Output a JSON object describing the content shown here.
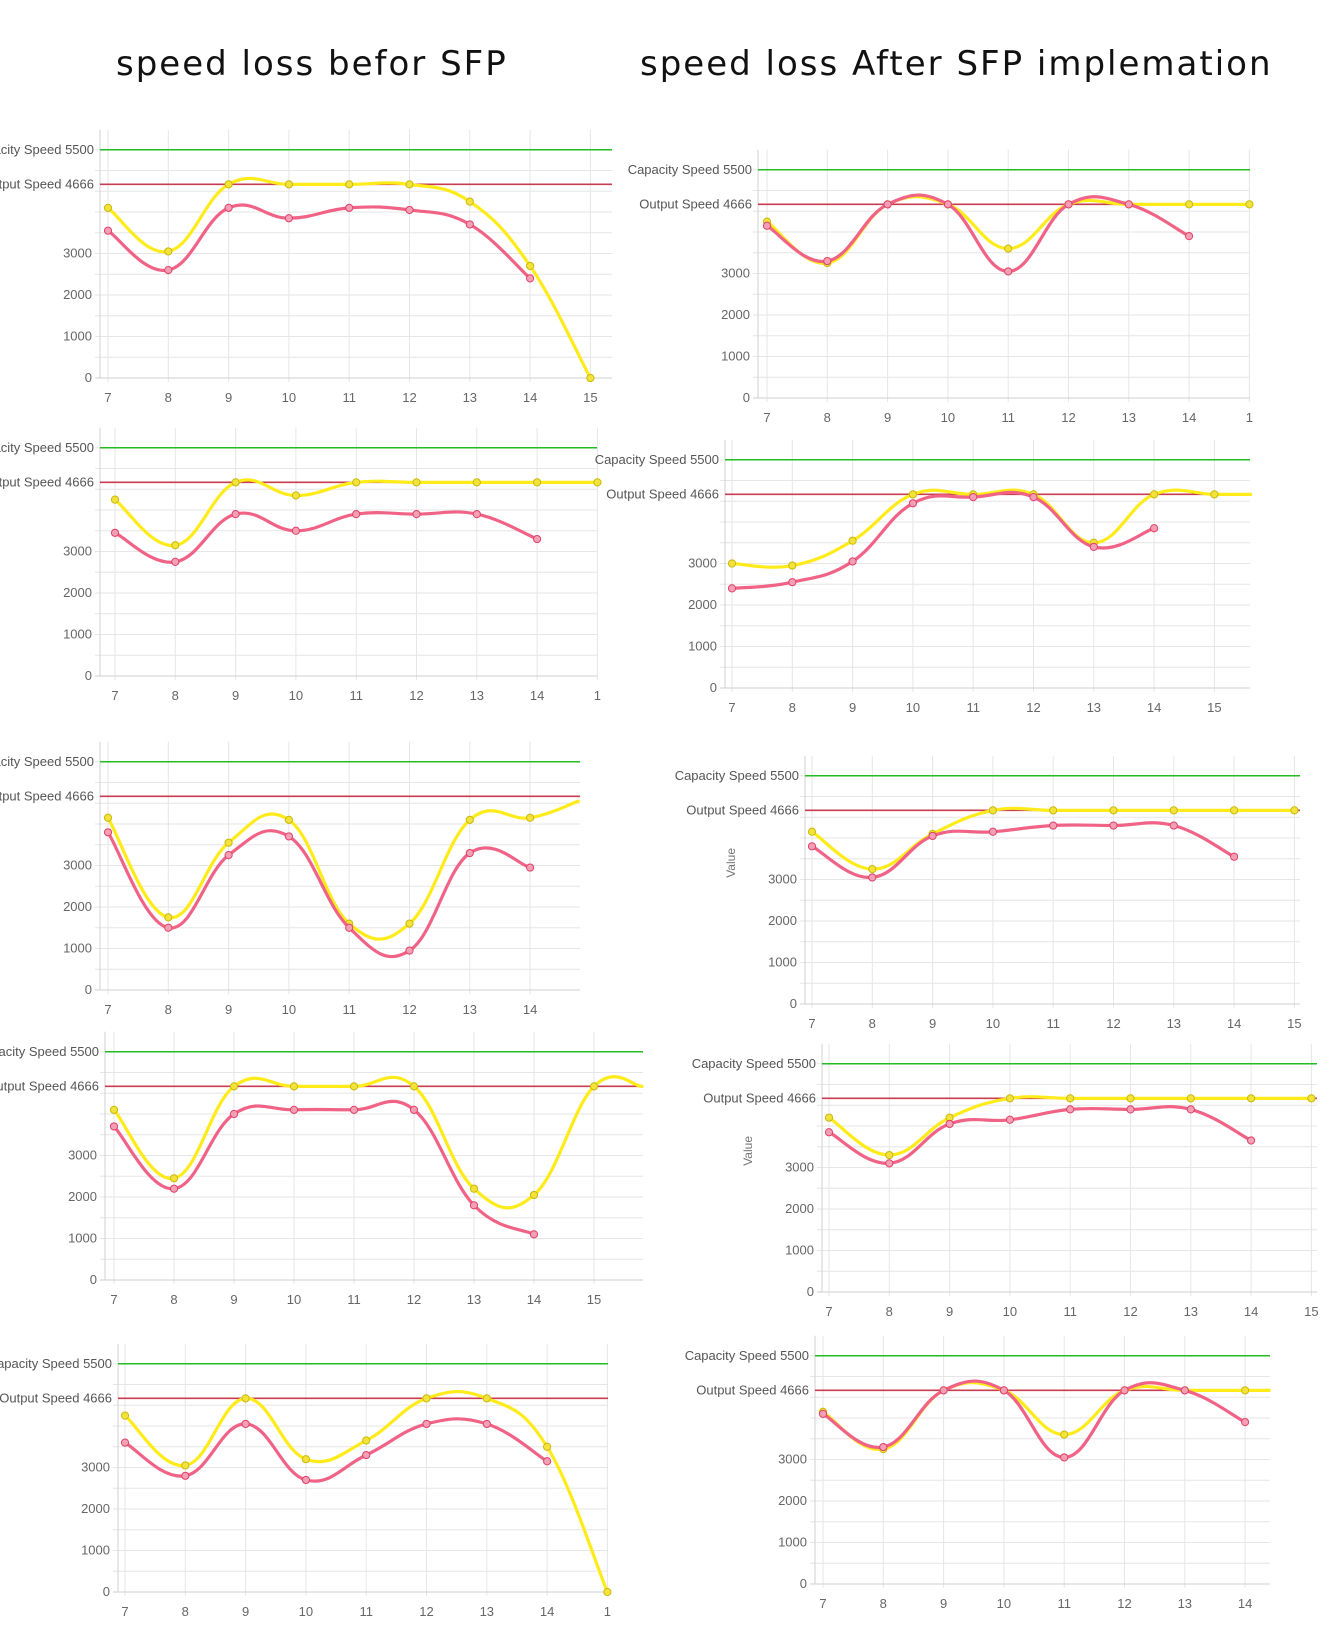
{
  "headings": {
    "left": "speed loss befor SFP",
    "right": "speed loss After SFP  implemation"
  },
  "colors": {
    "capacity_line": "#22bb22",
    "output_line": "#c83c50",
    "series_yellow": "#ffeb1a",
    "series_pink": "#f06386",
    "grid": "#e6e6e6"
  },
  "chart_data": [
    {
      "type": "line",
      "panel": "before-1",
      "x": [
        7,
        8,
        9,
        10,
        11,
        12,
        13,
        14,
        15
      ],
      "x_tick_labels": [
        "7",
        "8",
        "9",
        "10",
        "11",
        "12",
        "13",
        "14",
        "15"
      ],
      "y_ticks": [
        0,
        1000,
        2000,
        3000
      ],
      "reference_lines": [
        {
          "label": "Capacity Speed 5500",
          "value": 5500
        },
        {
          "label": "Output Speed 4666",
          "value": 4666
        }
      ],
      "ylim": [
        0,
        5500
      ],
      "series": [
        {
          "color": "yellow",
          "values": [
            4100,
            3050,
            4666,
            4666,
            4666,
            4666,
            4250,
            2700,
            0
          ]
        },
        {
          "color": "pink",
          "values": [
            3550,
            2600,
            4100,
            3850,
            4100,
            4050,
            3700,
            2400,
            null
          ]
        }
      ]
    },
    {
      "type": "line",
      "panel": "before-2",
      "x": [
        7,
        8,
        9,
        10,
        11,
        12,
        13,
        14,
        15
      ],
      "x_tick_labels": [
        "7",
        "8",
        "9",
        "10",
        "11",
        "12",
        "13",
        "14",
        "1"
      ],
      "y_ticks": [
        0,
        1000,
        2000,
        3000
      ],
      "reference_lines": [
        {
          "label": "Capacity Speed 5500",
          "value": 5500
        },
        {
          "label": "Output Speed 4666",
          "value": 4666
        }
      ],
      "ylim": [
        0,
        5500
      ],
      "series": [
        {
          "color": "yellow",
          "values": [
            4250,
            3150,
            4666,
            4350,
            4666,
            4666,
            4666,
            4666,
            4666
          ]
        },
        {
          "color": "pink",
          "values": [
            3450,
            2750,
            3900,
            3500,
            3900,
            3900,
            3900,
            3300,
            null
          ]
        }
      ]
    },
    {
      "type": "line",
      "panel": "before-3",
      "x": [
        7,
        8,
        9,
        10,
        11,
        12,
        13,
        14,
        14.8
      ],
      "x_tick_labels": [
        "7",
        "8",
        "9",
        "10",
        "11",
        "12",
        "13",
        "14"
      ],
      "y_ticks": [
        0,
        1000,
        2000,
        3000
      ],
      "reference_lines": [
        {
          "label": "Capacity Speed 5500",
          "value": 5500
        },
        {
          "label": "Output Speed 4666",
          "value": 4666
        }
      ],
      "ylim": [
        0,
        5500
      ],
      "series": [
        {
          "color": "yellow",
          "values": [
            4150,
            1750,
            3550,
            4100,
            1600,
            1600,
            4100,
            4150,
            4550
          ]
        },
        {
          "color": "pink",
          "values": [
            3800,
            1500,
            3250,
            3700,
            1500,
            950,
            3300,
            2950,
            null
          ]
        }
      ]
    },
    {
      "type": "line",
      "panel": "before-4",
      "x": [
        7,
        8,
        9,
        10,
        11,
        12,
        13,
        14,
        15,
        15.8
      ],
      "x_tick_labels": [
        "7",
        "8",
        "9",
        "10",
        "11",
        "12",
        "13",
        "14",
        "15"
      ],
      "y_ticks": [
        0,
        1000,
        2000,
        3000
      ],
      "reference_lines": [
        {
          "label": "Capacity Speed 5500",
          "value": 5500
        },
        {
          "label": "Output Speed 4666",
          "value": 4666
        }
      ],
      "ylim": [
        0,
        5500
      ],
      "series": [
        {
          "color": "yellow",
          "values": [
            4100,
            2450,
            4666,
            4666,
            4666,
            4666,
            2200,
            2050,
            4666,
            4666
          ]
        },
        {
          "color": "pink",
          "values": [
            3700,
            2200,
            4000,
            4100,
            4100,
            4100,
            1800,
            1100,
            null,
            null
          ]
        }
      ]
    },
    {
      "type": "line",
      "panel": "before-5",
      "x": [
        7,
        8,
        9,
        10,
        11,
        12,
        13,
        14,
        15
      ],
      "x_tick_labels": [
        "7",
        "8",
        "9",
        "10",
        "11",
        "12",
        "13",
        "14",
        "1"
      ],
      "y_ticks": [
        0,
        1000,
        2000,
        3000
      ],
      "reference_lines": [
        {
          "label": "Capacity Speed 5500",
          "value": 5500
        },
        {
          "label": "Output Speed 4666",
          "value": 4666
        }
      ],
      "ylim": [
        0,
        5500
      ],
      "series": [
        {
          "color": "yellow",
          "values": [
            4250,
            3050,
            4666,
            3200,
            3650,
            4666,
            4666,
            3500,
            0
          ]
        },
        {
          "color": "pink",
          "values": [
            3600,
            2800,
            4050,
            2700,
            3300,
            4050,
            4050,
            3150,
            null
          ]
        }
      ]
    },
    {
      "type": "line",
      "panel": "after-1",
      "x": [
        7,
        8,
        9,
        10,
        11,
        12,
        13,
        14,
        15
      ],
      "x_tick_labels": [
        "7",
        "8",
        "9",
        "10",
        "11",
        "12",
        "13",
        "14",
        "1"
      ],
      "y_ticks": [
        0,
        1000,
        2000,
        3000
      ],
      "reference_lines": [
        {
          "label": "Capacity Speed 5500",
          "value": 5500
        },
        {
          "label": "Output Speed 4666",
          "value": 4666
        }
      ],
      "ylim": [
        0,
        5500
      ],
      "series": [
        {
          "color": "yellow",
          "values": [
            4250,
            3250,
            4666,
            4666,
            3600,
            4666,
            4666,
            4666,
            4666
          ]
        },
        {
          "color": "pink",
          "values": [
            4150,
            3300,
            4666,
            4666,
            3050,
            4666,
            4666,
            3900,
            null
          ]
        }
      ]
    },
    {
      "type": "line",
      "panel": "after-2",
      "x": [
        7,
        8,
        9,
        10,
        11,
        12,
        13,
        14,
        15,
        15.6
      ],
      "x_tick_labels": [
        "7",
        "8",
        "9",
        "10",
        "11",
        "12",
        "13",
        "14",
        "15"
      ],
      "y_ticks": [
        0,
        1000,
        2000,
        3000
      ],
      "reference_lines": [
        {
          "label": "Capacity Speed 5500",
          "value": 5500
        },
        {
          "label": "Output Speed 4666",
          "value": 4666
        }
      ],
      "ylim": [
        0,
        5500
      ],
      "series": [
        {
          "color": "yellow",
          "values": [
            3000,
            2950,
            3550,
            4666,
            4666,
            4666,
            3500,
            4666,
            4666,
            4666
          ]
        },
        {
          "color": "pink",
          "values": [
            2400,
            2550,
            3050,
            4450,
            4600,
            4600,
            3400,
            3850,
            null,
            null
          ]
        }
      ]
    },
    {
      "type": "line",
      "panel": "after-3",
      "x": [
        7,
        8,
        9,
        10,
        11,
        12,
        13,
        14,
        15
      ],
      "x_tick_labels": [
        "7",
        "8",
        "9",
        "10",
        "11",
        "12",
        "13",
        "14",
        "15"
      ],
      "y_ticks": [
        0,
        1000,
        2000,
        3000
      ],
      "reference_lines": [
        {
          "label": "Capacity Speed 5500",
          "value": 5500
        },
        {
          "label": "Output Speed 4666",
          "value": 4666
        }
      ],
      "ylim": [
        0,
        5500
      ],
      "y_axis_title": "Value",
      "series": [
        {
          "color": "yellow",
          "values": [
            4150,
            3250,
            4100,
            4666,
            4666,
            4666,
            4666,
            4666,
            4666
          ]
        },
        {
          "color": "pink",
          "values": [
            3800,
            3050,
            4050,
            4150,
            4300,
            4300,
            4300,
            3550,
            null
          ]
        }
      ]
    },
    {
      "type": "line",
      "panel": "after-4",
      "x": [
        7,
        8,
        9,
        10,
        11,
        12,
        13,
        14,
        15
      ],
      "x_tick_labels": [
        "7",
        "8",
        "9",
        "10",
        "11",
        "12",
        "13",
        "14",
        "15"
      ],
      "y_ticks": [
        0,
        1000,
        2000,
        3000
      ],
      "reference_lines": [
        {
          "label": "Capacity Speed 5500",
          "value": 5500
        },
        {
          "label": "Output Speed 4666",
          "value": 4666
        }
      ],
      "ylim": [
        0,
        5500
      ],
      "y_axis_title": "Value",
      "series": [
        {
          "color": "yellow",
          "values": [
            4200,
            3300,
            4200,
            4666,
            4666,
            4666,
            4666,
            4666,
            4666
          ]
        },
        {
          "color": "pink",
          "values": [
            3850,
            3100,
            4050,
            4150,
            4400,
            4400,
            4400,
            3650,
            null
          ]
        }
      ]
    },
    {
      "type": "line",
      "panel": "after-5",
      "x": [
        7,
        8,
        9,
        10,
        11,
        12,
        13,
        14,
        14.4
      ],
      "x_tick_labels": [
        "7",
        "8",
        "9",
        "10",
        "11",
        "12",
        "13",
        "14"
      ],
      "y_ticks": [
        0,
        1000,
        2000,
        3000
      ],
      "reference_lines": [
        {
          "label": "Capacity Speed 5500",
          "value": 5500
        },
        {
          "label": "Output Speed 4666",
          "value": 4666
        }
      ],
      "ylim": [
        0,
        5500
      ],
      "series": [
        {
          "color": "yellow",
          "values": [
            4150,
            3250,
            4666,
            4666,
            3600,
            4666,
            4666,
            4666,
            4666
          ]
        },
        {
          "color": "pink",
          "values": [
            4100,
            3300,
            4666,
            4666,
            3050,
            4666,
            4666,
            3900,
            null
          ]
        }
      ]
    }
  ]
}
